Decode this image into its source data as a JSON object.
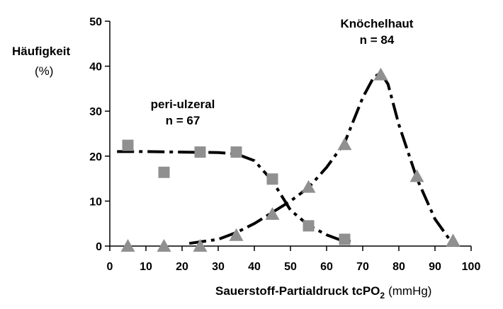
{
  "chart_data": {
    "type": "scatter",
    "ylabel": "Häufigkeit",
    "ylabel_unit": "(%)",
    "xlabel": "Sauerstoff-Partialdruck tcPO",
    "xlabel_sub": "2",
    "xlabel_unit": "(mmHg)",
    "xlim": [
      0,
      100
    ],
    "ylim": [
      0,
      50
    ],
    "x_ticks": [
      "0",
      "10",
      "20",
      "30",
      "40",
      "50",
      "60",
      "70",
      "80",
      "90",
      "100"
    ],
    "y_ticks": [
      "0",
      "10",
      "20",
      "30",
      "40",
      "50"
    ],
    "grid": false,
    "series": [
      {
        "name": "peri-ulzeral",
        "name_line2": "n = 67",
        "marker": "square",
        "color": "#909090",
        "x": [
          5,
          15,
          25,
          35,
          45,
          55,
          65
        ],
        "y": [
          22.4,
          16.4,
          20.9,
          20.9,
          14.9,
          4.5,
          1.5
        ],
        "curve_x": [
          2,
          10,
          20,
          30,
          35,
          40,
          45,
          50,
          55,
          60,
          64,
          68
        ],
        "curve_y": [
          21,
          21,
          20.9,
          20.8,
          20.5,
          19,
          14.5,
          8,
          4.6,
          2.5,
          1.3,
          0.9
        ]
      },
      {
        "name": "Knöchelhaut",
        "name_line2": "n = 84",
        "marker": "triangle",
        "color": "#909090",
        "x": [
          5,
          15,
          25,
          35,
          45,
          55,
          65,
          75,
          85,
          95
        ],
        "y": [
          0,
          0,
          0,
          2.4,
          7.1,
          13.1,
          22.6,
          38.1,
          15.5,
          1.2
        ],
        "curve_x": [
          22,
          30,
          35,
          40,
          45,
          50,
          55,
          60,
          65,
          70,
          73,
          75,
          77,
          80,
          85,
          90,
          94,
          96
        ],
        "curve_y": [
          0.6,
          1.5,
          3,
          5,
          7.5,
          10,
          13,
          17.5,
          23,
          33,
          37.5,
          38.5,
          36,
          27,
          15,
          6,
          1.5,
          0.3
        ]
      }
    ]
  }
}
